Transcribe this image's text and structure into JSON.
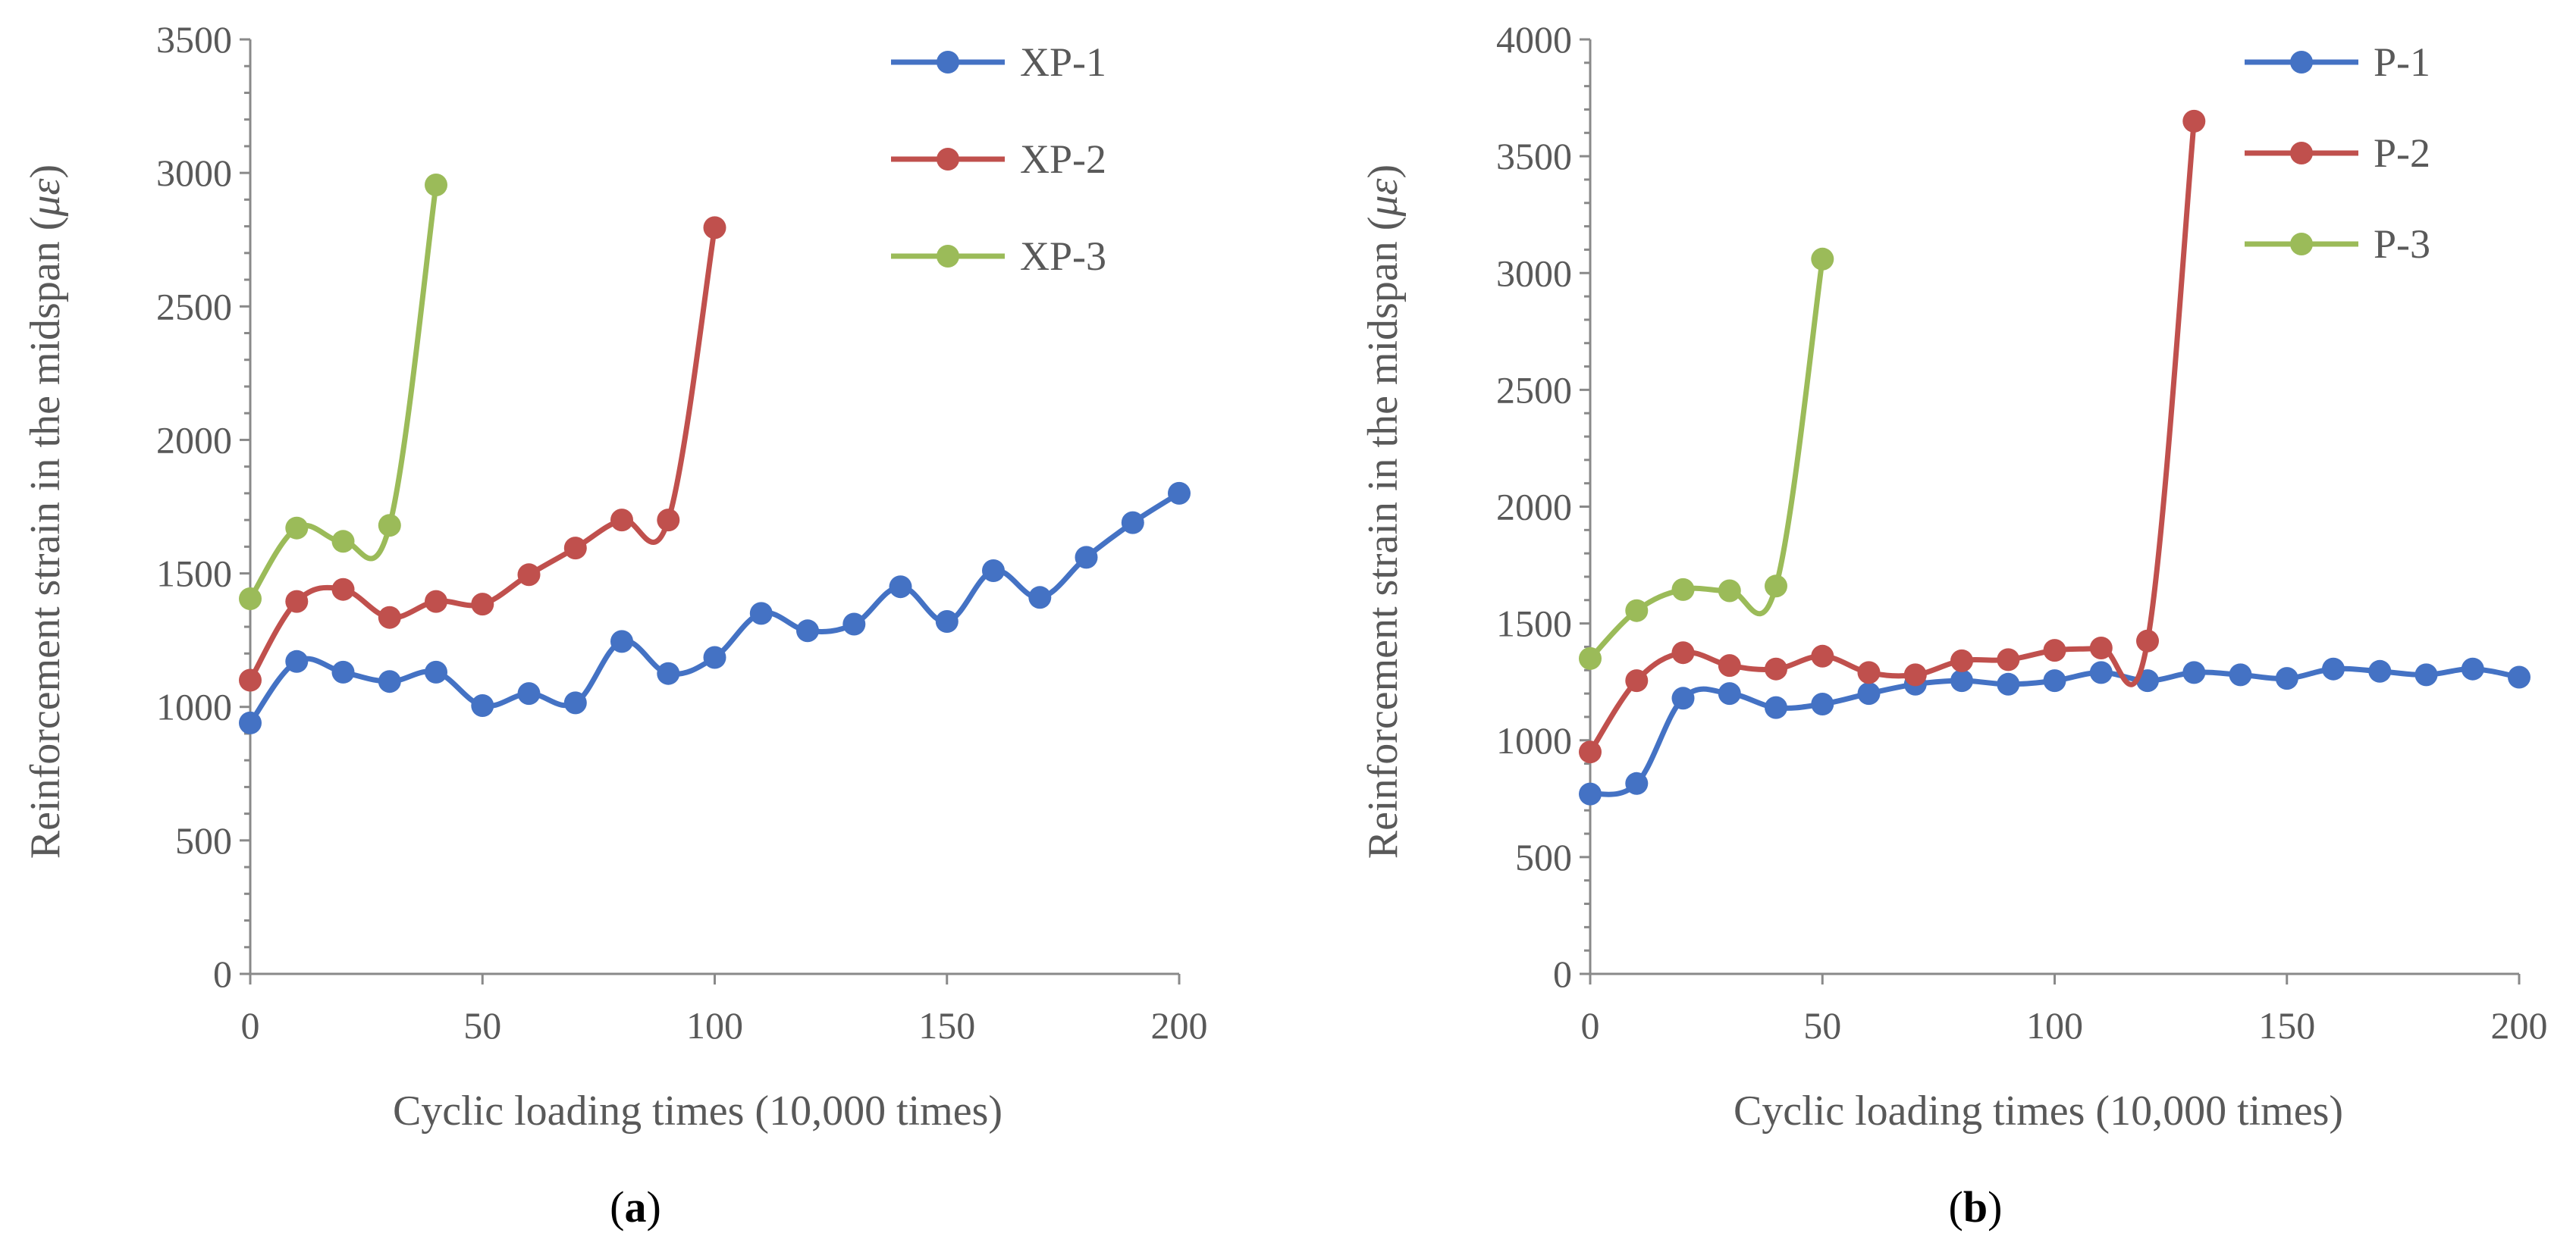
{
  "chart_data": [
    {
      "type": "line",
      "panel_label": "a",
      "xlabel": "Cyclic loading times (10,000 times)",
      "ylabel": "Reinforcement strain in the midspan (με)",
      "ylabel_main": "Reinforcement strain in the midspan (",
      "ylabel_unit": "με",
      "ylabel_close": ")",
      "xlim": [
        0,
        200
      ],
      "ylim": [
        0,
        3500
      ],
      "xticks": [
        "0",
        "50",
        "100",
        "150",
        "200"
      ],
      "yticks": [
        "0",
        "500",
        "1000",
        "1500",
        "2000",
        "2500",
        "3000",
        "3500"
      ],
      "legend_position": "top-right",
      "series": [
        {
          "name": "XP-1",
          "color": "#4472C4",
          "x": [
            0,
            10,
            20,
            30,
            40,
            50,
            60,
            70,
            80,
            90,
            100,
            110,
            120,
            130,
            140,
            150,
            160,
            170,
            180,
            190,
            200
          ],
          "y": [
            940,
            1170,
            1130,
            1095,
            1130,
            1005,
            1050,
            1015,
            1245,
            1125,
            1185,
            1350,
            1285,
            1310,
            1450,
            1320,
            1510,
            1410,
            1560,
            1690,
            1800
          ]
        },
        {
          "name": "XP-2",
          "color": "#C0504D",
          "x": [
            0,
            10,
            20,
            30,
            40,
            50,
            60,
            70,
            80,
            90,
            100
          ],
          "y": [
            1100,
            1395,
            1440,
            1335,
            1395,
            1385,
            1495,
            1595,
            1700,
            1700,
            2795
          ]
        },
        {
          "name": "XP-3",
          "color": "#9BBB59",
          "x": [
            0,
            10,
            20,
            30,
            40
          ],
          "y": [
            1405,
            1670,
            1620,
            1680,
            2955
          ]
        }
      ]
    },
    {
      "type": "line",
      "panel_label": "b",
      "xlabel": "Cyclic loading times (10,000 times)",
      "ylabel": "Reinforcement strain in the midspan (με)",
      "ylabel_main": "Reinforcement strain in the midspan (",
      "ylabel_unit": "με",
      "ylabel_close": ")",
      "xlim": [
        0,
        200
      ],
      "ylim": [
        0,
        4000
      ],
      "xticks": [
        "0",
        "50",
        "100",
        "150",
        "200"
      ],
      "yticks": [
        "0",
        "500",
        "1000",
        "1500",
        "2000",
        "2500",
        "3000",
        "3500",
        "4000"
      ],
      "legend_position": "top-right",
      "series": [
        {
          "name": "P-1",
          "color": "#4472C4",
          "x": [
            0,
            10,
            20,
            30,
            40,
            50,
            60,
            70,
            80,
            90,
            100,
            110,
            120,
            130,
            140,
            150,
            160,
            170,
            180,
            190,
            200
          ],
          "y": [
            770,
            815,
            1180,
            1200,
            1140,
            1155,
            1200,
            1240,
            1255,
            1240,
            1255,
            1290,
            1255,
            1290,
            1280,
            1265,
            1305,
            1295,
            1280,
            1305,
            1270
          ]
        },
        {
          "name": "P-2",
          "color": "#C0504D",
          "x": [
            0,
            10,
            20,
            30,
            40,
            50,
            60,
            70,
            80,
            90,
            100,
            110,
            120,
            130
          ],
          "y": [
            950,
            1255,
            1375,
            1320,
            1305,
            1360,
            1290,
            1280,
            1340,
            1345,
            1385,
            1395,
            1425,
            3650
          ]
        },
        {
          "name": "P-3",
          "color": "#9BBB59",
          "x": [
            0,
            10,
            20,
            30,
            40,
            50
          ],
          "y": [
            1350,
            1555,
            1645,
            1640,
            1660,
            3060
          ]
        }
      ]
    }
  ]
}
